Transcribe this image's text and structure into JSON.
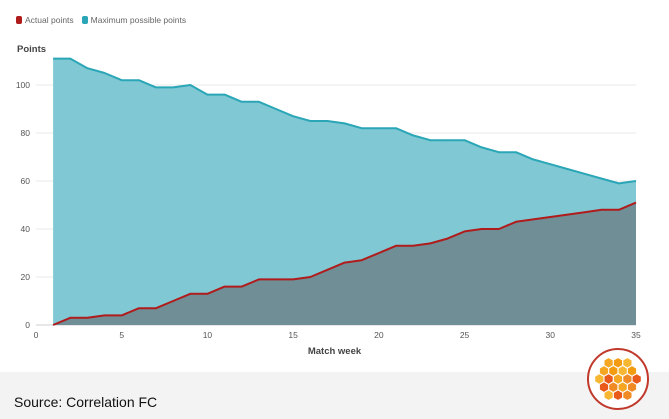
{
  "source_text": "Source: Correlation FC",
  "chart_data": {
    "type": "area",
    "title": "",
    "xlabel": "Match week",
    "ylabel": "Points",
    "xlim": [
      0,
      35
    ],
    "ylim": [
      0,
      110
    ],
    "xticks": [
      0,
      5,
      10,
      15,
      20,
      25,
      30,
      35
    ],
    "yticks": [
      0,
      20,
      40,
      60,
      80,
      100
    ],
    "grid": "horizontal",
    "legend_position": "top-left",
    "x": [
      1,
      2,
      3,
      4,
      5,
      6,
      7,
      8,
      9,
      10,
      11,
      12,
      13,
      14,
      15,
      16,
      17,
      18,
      19,
      20,
      21,
      22,
      23,
      24,
      25,
      26,
      27,
      28,
      29,
      30,
      31,
      32,
      33,
      34,
      35
    ],
    "series": [
      {
        "name": "Actual points",
        "color": "#b01c1c",
        "fill": "#6f8e95",
        "values": [
          0,
          3,
          3,
          4,
          4,
          7,
          7,
          10,
          13,
          13,
          16,
          16,
          19,
          19,
          19,
          20,
          23,
          26,
          27,
          30,
          33,
          33,
          34,
          36,
          39,
          40,
          40,
          43,
          44,
          45,
          46,
          47,
          48,
          48,
          51
        ]
      },
      {
        "name": "Maximum possible points",
        "color": "#2aa6b6",
        "fill": "#80c9d4",
        "values": [
          111,
          111,
          107,
          105,
          102,
          102,
          99,
          99,
          100,
          96,
          96,
          93,
          93,
          90,
          87,
          85,
          85,
          84,
          82,
          82,
          82,
          79,
          77,
          77,
          77,
          74,
          72,
          72,
          69,
          67,
          65,
          63,
          61,
          59,
          60
        ]
      }
    ]
  }
}
